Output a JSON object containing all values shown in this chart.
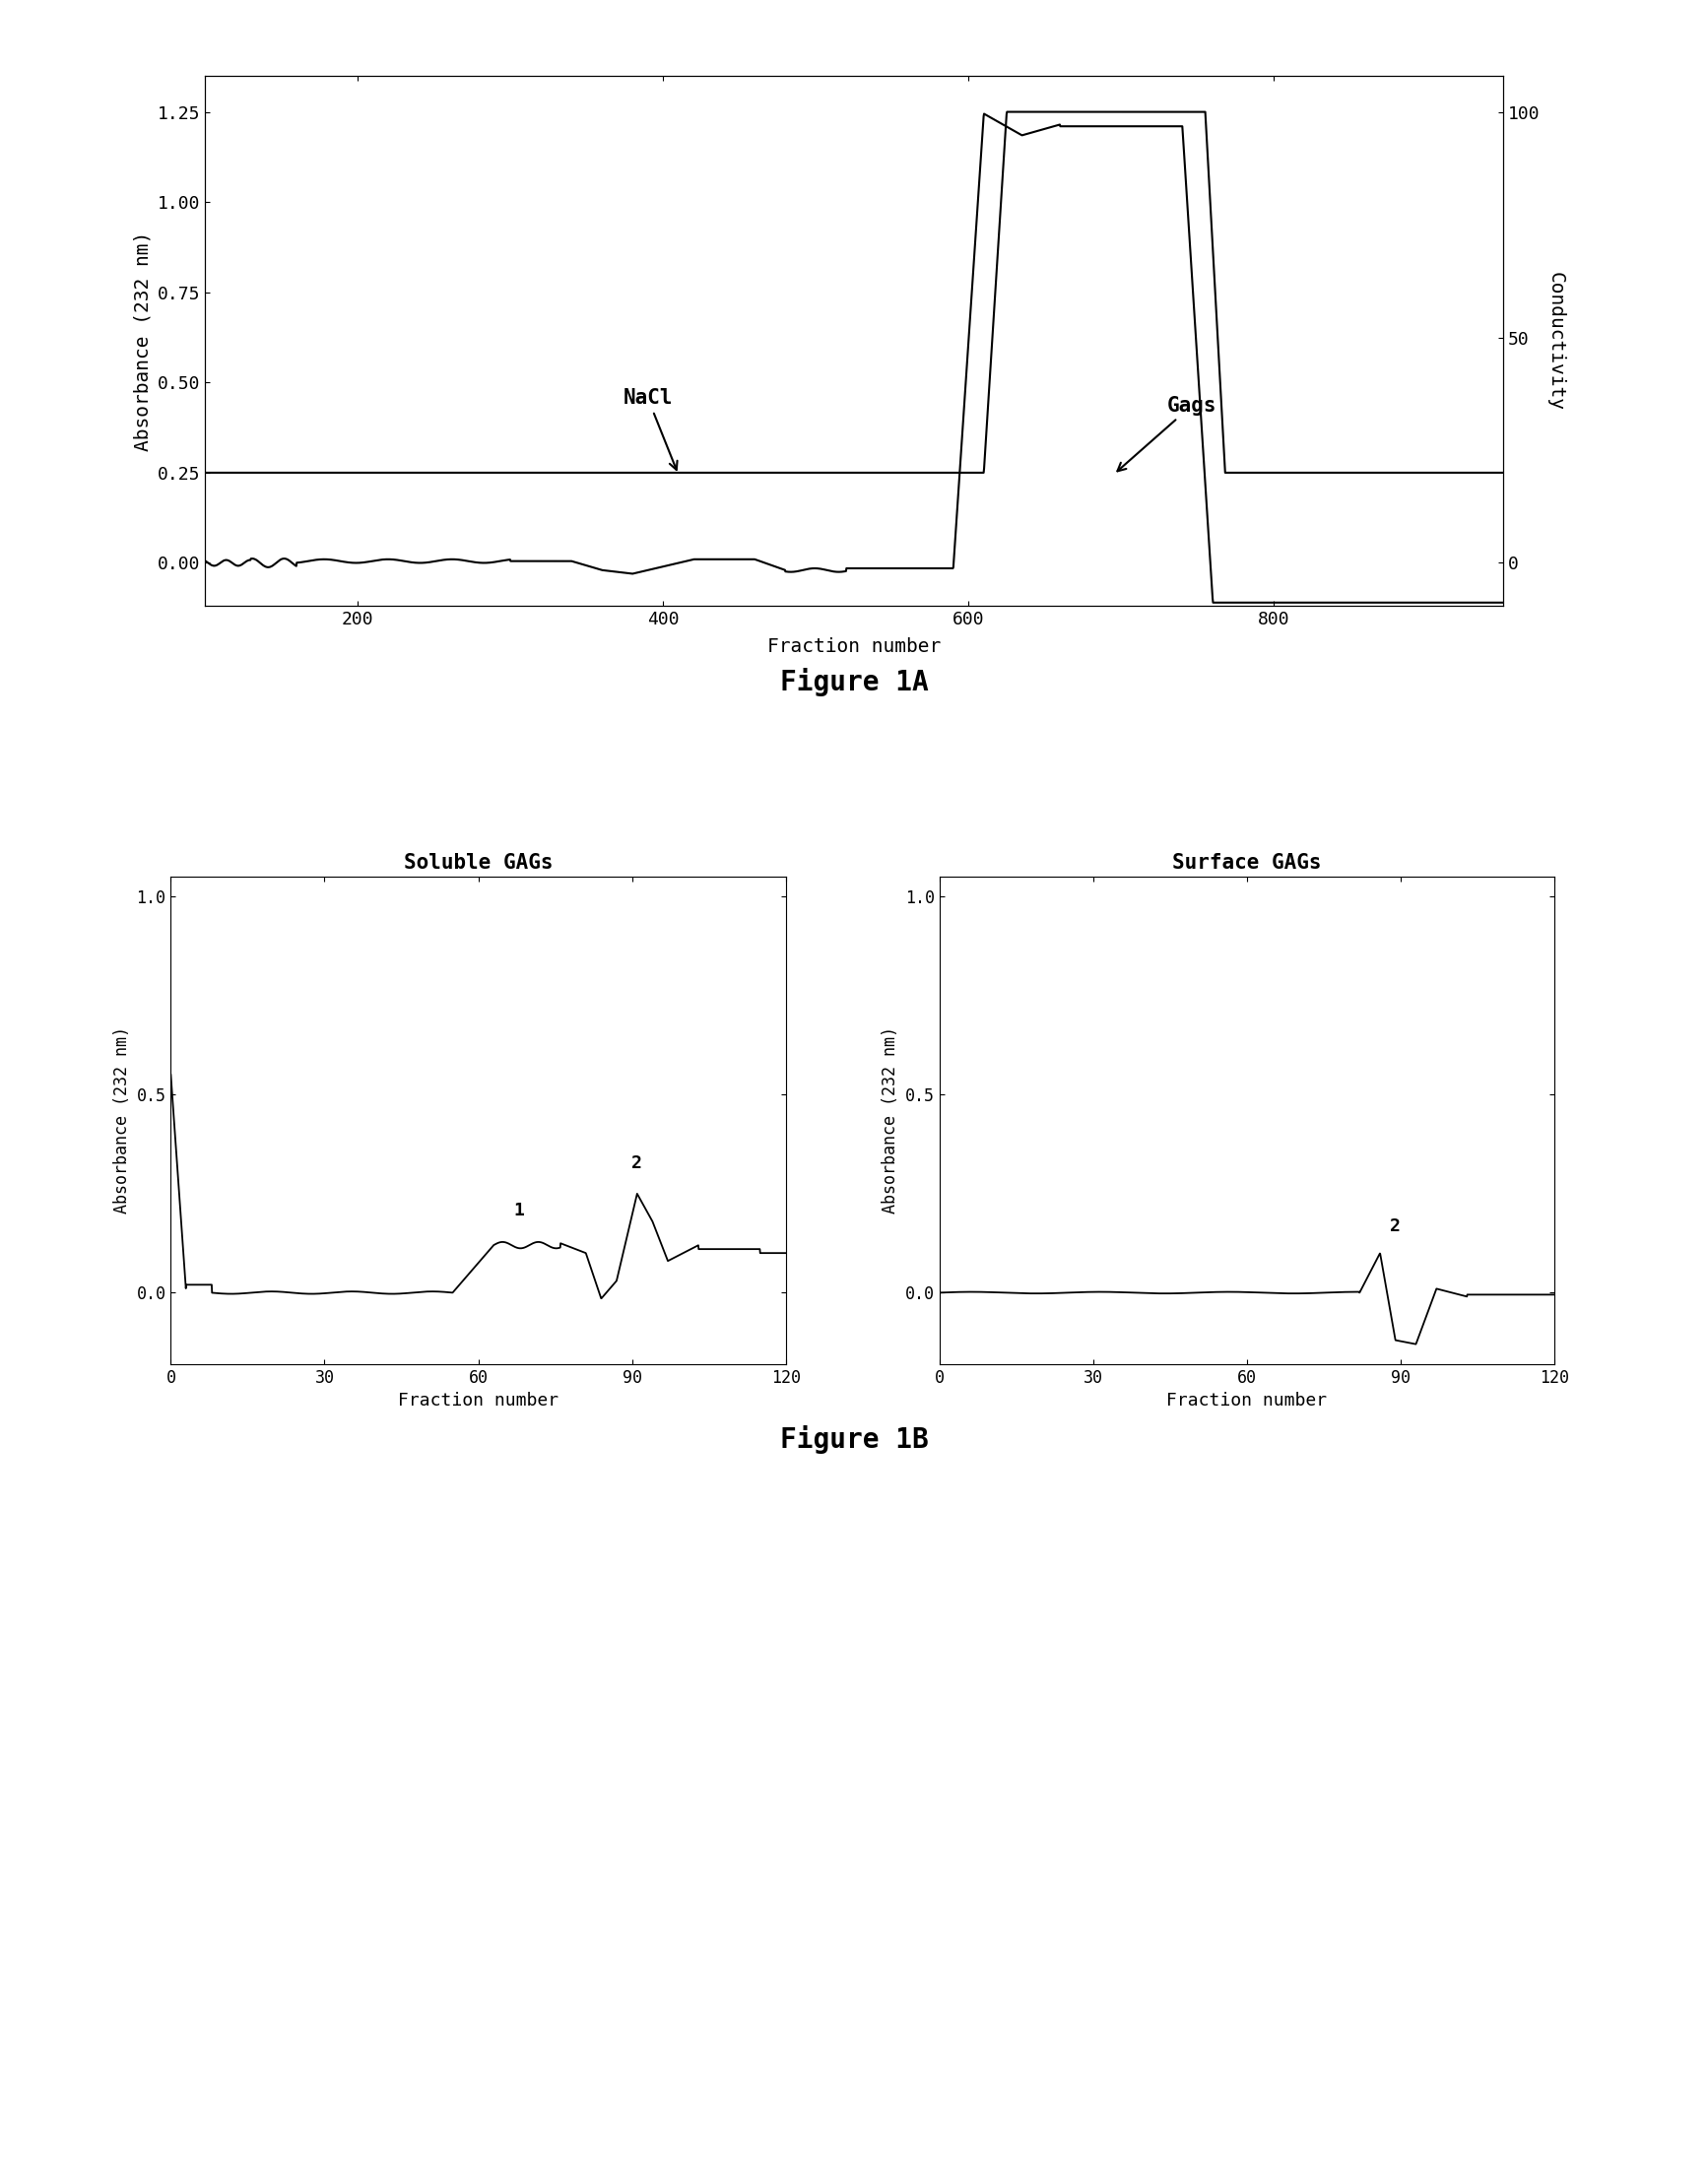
{
  "fig1A": {
    "xlabel": "Fraction number",
    "ylabel_left": "Absorbance (232 nm)",
    "ylabel_right": "Conductivity",
    "xlim": [
      100,
      950
    ],
    "ylim_left": [
      -0.12,
      1.35
    ],
    "yticks_left": [
      0.0,
      0.25,
      0.5,
      0.75,
      1.0,
      1.25
    ],
    "ytick_labels_left": [
      "0.00",
      "0.25",
      "0.50",
      "0.75",
      "1.00",
      "1.25"
    ],
    "yticks_right": [
      0,
      50,
      100
    ],
    "xticks": [
      200,
      400,
      600,
      800
    ],
    "caption": "Figure 1A"
  },
  "fig1B_left": {
    "title": "Soluble GAGs",
    "xlabel": "Fraction number",
    "ylabel": "Absorbance (232 nm)",
    "xlim": [
      0,
      120
    ],
    "ylim": [
      -0.18,
      1.05
    ],
    "xticks": [
      0,
      30,
      60,
      90,
      120
    ],
    "yticks": [
      0.0,
      0.5,
      1.0
    ],
    "ytick_labels": [
      "0.0",
      "0.5",
      "1.0"
    ]
  },
  "fig1B_right": {
    "title": "Surface GAGs",
    "xlabel": "Fraction number",
    "ylabel": "Absorbance (232 nm)",
    "xlim": [
      0,
      120
    ],
    "ylim": [
      -0.18,
      1.05
    ],
    "xticks": [
      0,
      30,
      60,
      90,
      120
    ],
    "yticks": [
      0.0,
      0.5,
      1.0
    ],
    "ytick_labels": [
      "0.0",
      "0.5",
      "1.0"
    ]
  },
  "fig1B_caption": "Figure 1B"
}
